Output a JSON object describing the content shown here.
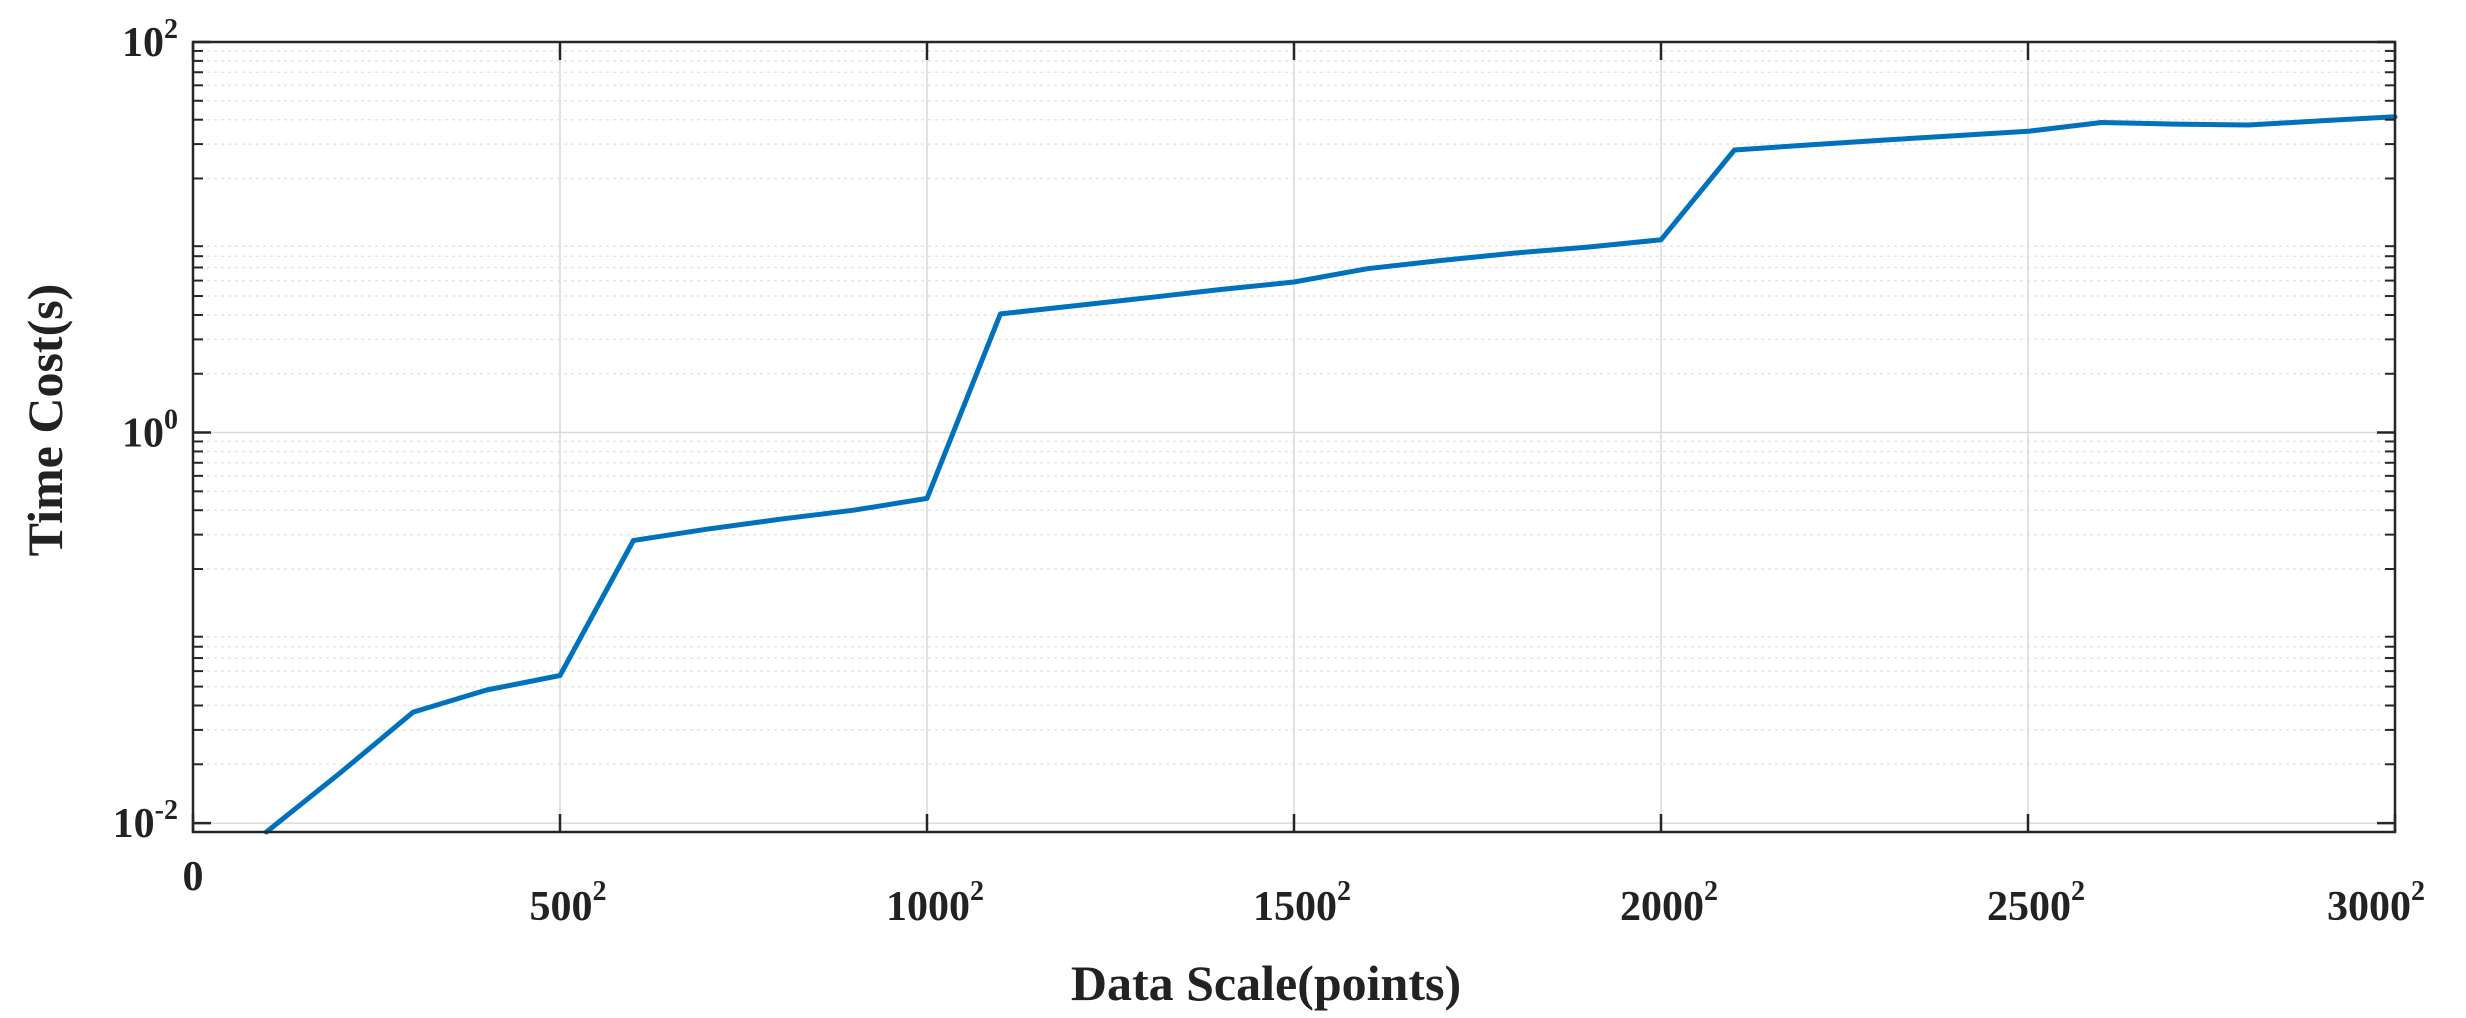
{
  "chart_data": {
    "type": "line",
    "xlabel": "Data Scale(points)",
    "ylabel": "Time Cost(s)",
    "x_scale": "square-root (points shown as n²)",
    "y_scale": "log",
    "xlim": [
      0,
      3000
    ],
    "ylim": [
      0.009,
      100
    ],
    "grid": true,
    "x_ticks": [
      {
        "value": 0,
        "label": "0",
        "sup": ""
      },
      {
        "value": 500,
        "label": "500",
        "sup": "2"
      },
      {
        "value": 1000,
        "label": "1000",
        "sup": "2"
      },
      {
        "value": 1500,
        "label": "1500",
        "sup": "2"
      },
      {
        "value": 2000,
        "label": "2000",
        "sup": "2"
      },
      {
        "value": 2500,
        "label": "2500",
        "sup": "2"
      },
      {
        "value": 3000,
        "label": "3000",
        "sup": "2"
      }
    ],
    "y_ticks": [
      {
        "value": 0.01,
        "label": "10",
        "sup": "-2"
      },
      {
        "value": 1,
        "label": "10",
        "sup": "0"
      },
      {
        "value": 100,
        "label": "10",
        "sup": "2"
      }
    ],
    "series": [
      {
        "color": "#0072bd",
        "x": [
          100,
          200,
          300,
          400,
          500,
          600,
          700,
          800,
          900,
          1000,
          1100,
          1200,
          1300,
          1400,
          1500,
          1600,
          1700,
          1800,
          1900,
          2000,
          2100,
          2200,
          2300,
          2400,
          2500,
          2600,
          2700,
          2800,
          2900,
          3000
        ],
        "y": [
          0.009,
          0.018,
          0.037,
          0.048,
          0.057,
          0.28,
          0.32,
          0.36,
          0.4,
          0.46,
          4.05,
          4.45,
          4.9,
          5.4,
          5.9,
          6.9,
          7.6,
          8.3,
          8.9,
          9.7,
          28.0,
          29.7,
          31.4,
          33.1,
          34.9,
          38.7,
          38.0,
          37.6,
          39.5,
          41.4
        ]
      }
    ]
  }
}
